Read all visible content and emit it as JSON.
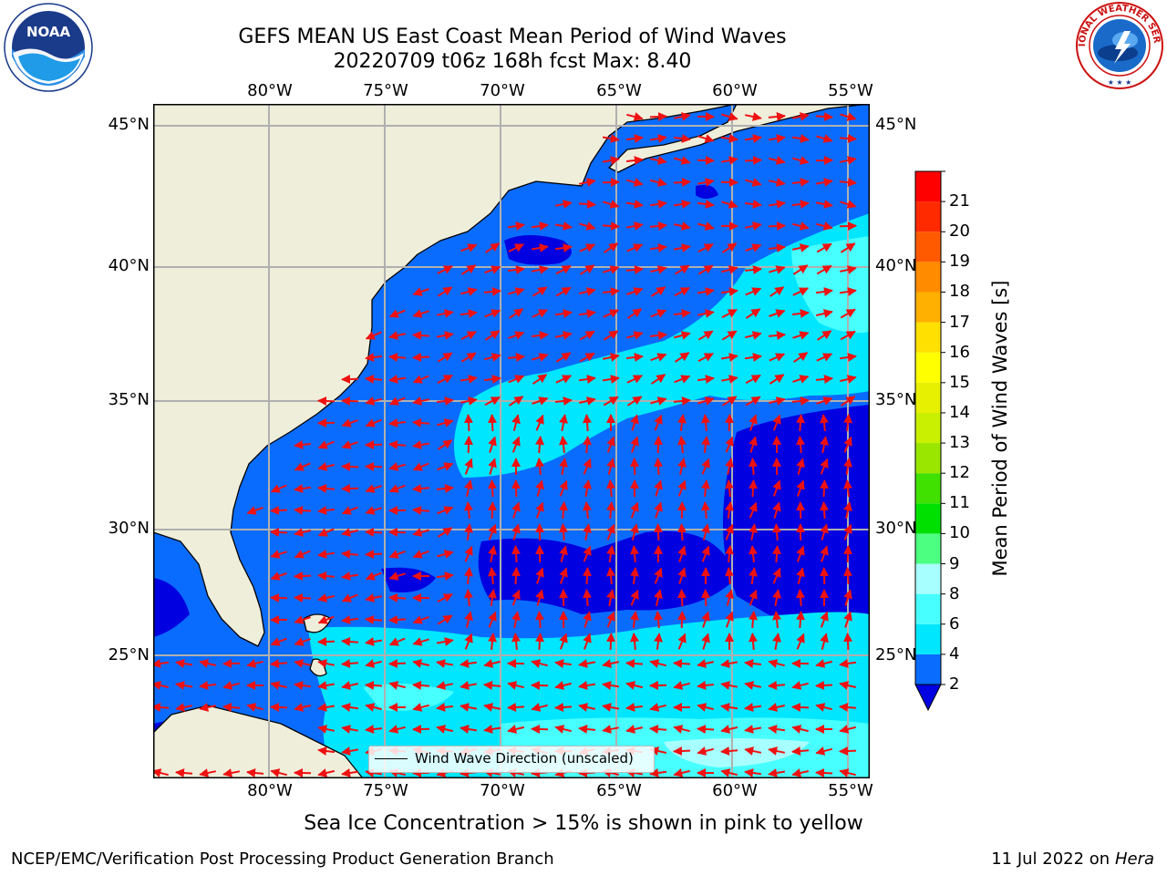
{
  "header": {
    "title_line1": "GEFS MEAN US East Coast Mean Period of Wind Waves",
    "title_line2": "20220709 t06z 168h fcst   Max: 8.40"
  },
  "logos": {
    "left": {
      "name": "noaa-logo",
      "text": "NOAA",
      "ring_text": "NATIONAL OCEANIC AND ATMOSPHERIC ADMINISTRATION · U.S. DEPARTMENT OF COMMERCE"
    },
    "right": {
      "name": "nws-logo",
      "ring_text": "NATIONAL WEATHER SERVICE"
    }
  },
  "map": {
    "region": "US East Coast / Western Atlantic",
    "lon_range": [
      -85,
      -54
    ],
    "lat_range": [
      20.5,
      46
    ],
    "lon_ticks": [
      "80°W",
      "75°W",
      "70°W",
      "65°W",
      "60°W",
      "55°W"
    ],
    "lon_tick_values": [
      -80,
      -75,
      -70,
      -65,
      -60,
      -55
    ],
    "lat_ticks": [
      "45°N",
      "40°N",
      "35°N",
      "30°N",
      "25°N"
    ],
    "lat_tick_values": [
      45,
      40,
      35,
      30,
      25
    ],
    "colors": {
      "land": "#efeedb",
      "coast": "#000000",
      "grid": "#b0b0b0",
      "arrows": "#ee1111"
    },
    "legend": {
      "label": "Wind Wave Direction (unscaled)",
      "placement": "bottom-center"
    }
  },
  "colorbar": {
    "label": "Mean Period of Wind Waves [s]",
    "extend": "min",
    "boundaries": [
      2,
      4,
      6,
      8,
      9,
      10,
      11,
      12,
      13,
      14,
      15,
      16,
      17,
      18,
      19,
      20,
      21
    ],
    "tick_labels": [
      "2",
      "4",
      "6",
      "8",
      "9",
      "10",
      "11",
      "12",
      "13",
      "14",
      "15",
      "16",
      "17",
      "18",
      "19",
      "20",
      "21"
    ],
    "under_color": "#0000e0",
    "colors": [
      "#0a6cff",
      "#00e6ff",
      "#48ffff",
      "#a8ffff",
      "#4dff80",
      "#00e000",
      "#40e000",
      "#9ae600",
      "#c8f000",
      "#e6f000",
      "#ffff00",
      "#ffe000",
      "#ffb000",
      "#ff8c00",
      "#ff5a00",
      "#ff2a00",
      "#ff0000"
    ]
  },
  "chart_data": {
    "type": "heatmap",
    "variable": "Mean Period of Wind Waves",
    "units": "s",
    "forecast": "20220709 t06z 168h fcst",
    "max_value": 8.4,
    "regions": [
      {
        "area": "coastal waters and shelf, Gulf of Maine to Florida",
        "approx_period_s": "2-4"
      },
      {
        "area": "open ocean 28-43°N",
        "approx_period_s": "2-4"
      },
      {
        "area": "SW-NE band from 32°N 72°W to 42°N 55°W",
        "approx_period_s": "4-6"
      },
      {
        "area": "deep-blue patches 27-35°N 55-72°W",
        "approx_period_s": "<2"
      },
      {
        "area": "trade-wind zone south of 25°N, east of Bahamas",
        "approx_period_s": "4-8"
      },
      {
        "area": "far southeast near 22°N 55-65°W",
        "approx_period_s": "6-8"
      }
    ]
  },
  "footer": {
    "note": "Sea Ice Concentration > 15% is shown in pink to yellow",
    "credit": "NCEP/EMC/Verification Post Processing Product Generation Branch",
    "date_prefix": "11 Jul 2022 on",
    "machine": "Hera"
  }
}
